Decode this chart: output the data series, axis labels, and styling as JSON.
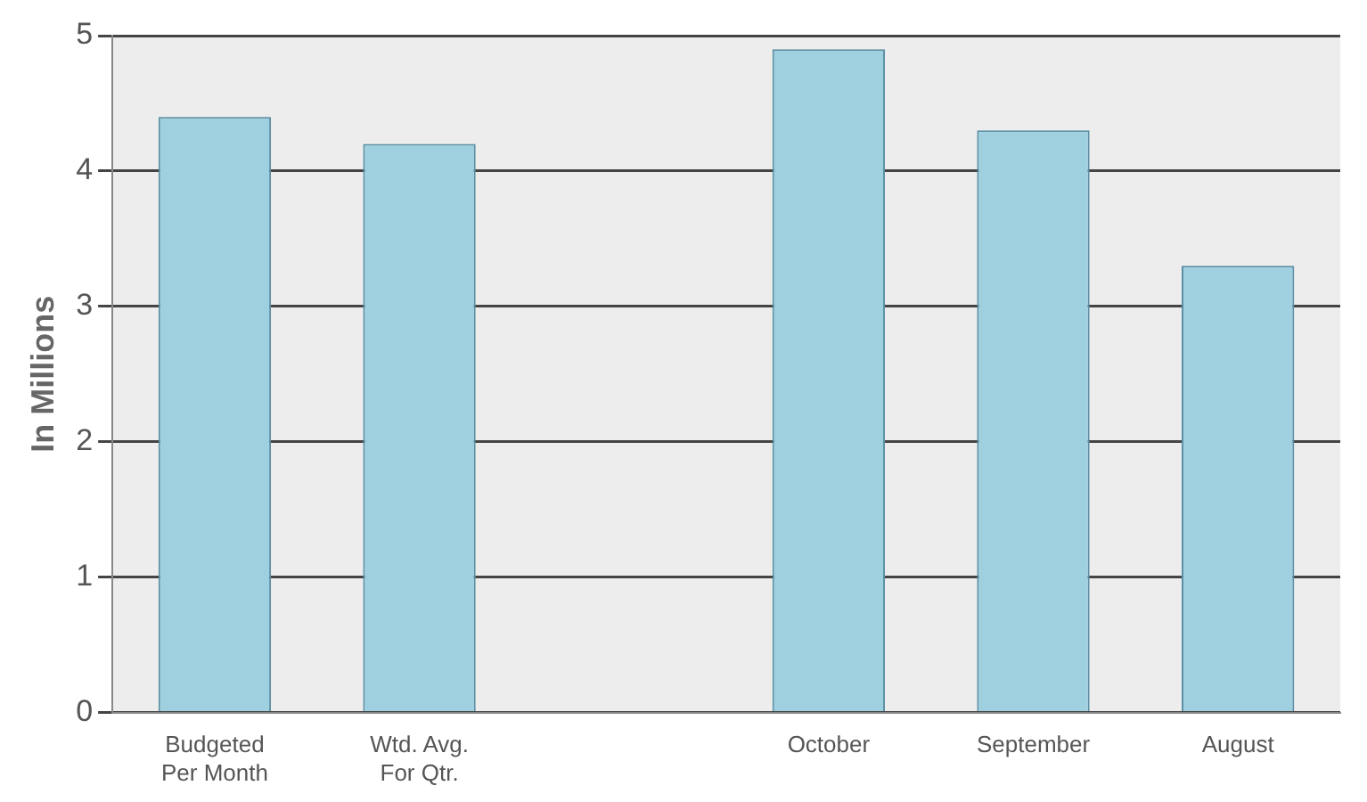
{
  "chart_data": {
    "type": "bar",
    "ylabel": "In Millions",
    "categories": [
      "Budgeted Per Month",
      "Wtd. Avg. For Qtr.",
      null,
      "October",
      "September",
      "August"
    ],
    "values": [
      4.4,
      4.2,
      null,
      4.9,
      4.3,
      3.3
    ],
    "color": "#9fd0e0",
    "ylim": [
      0,
      5
    ],
    "yticks": [
      0,
      1,
      2,
      3,
      4,
      5
    ],
    "grid": "y"
  }
}
